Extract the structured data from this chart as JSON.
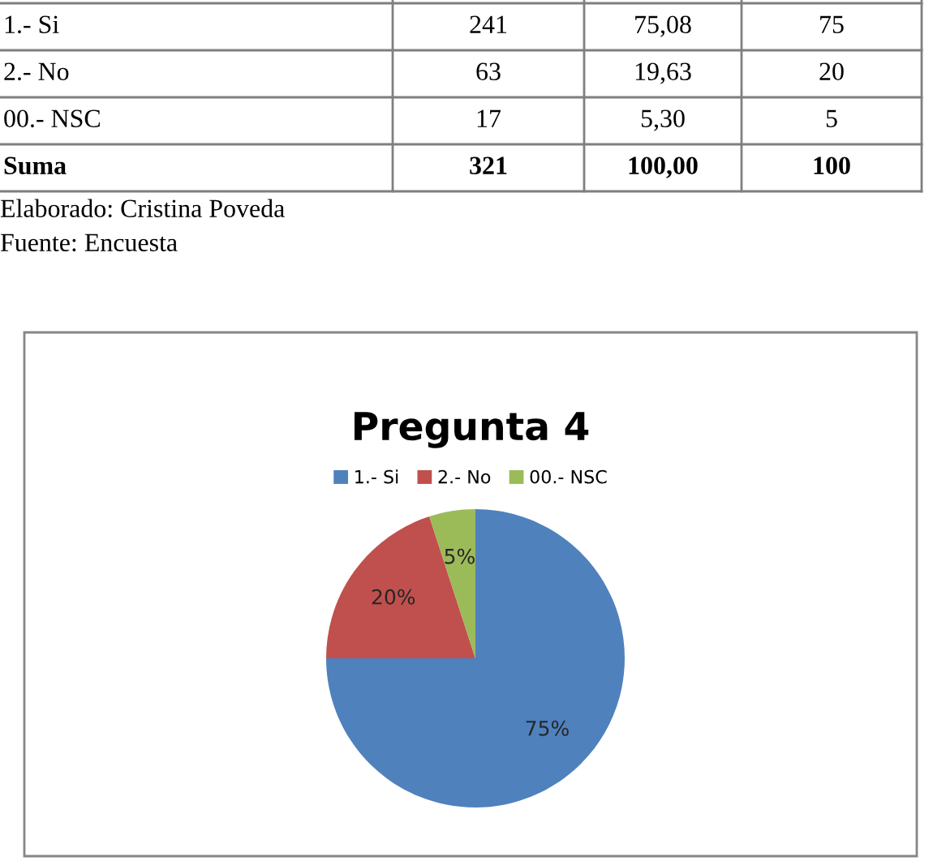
{
  "chart_data": {
    "type": "pie",
    "title": "Pregunta 4",
    "categories": [
      "1.- Si",
      "2.- No",
      "00.- NSC"
    ],
    "values": [
      75,
      20,
      5
    ],
    "colors": [
      "#4f81bd",
      "#c0504d",
      "#9bbb59"
    ],
    "value_labels": [
      "75%",
      "20%",
      "5%"
    ],
    "legend": "top",
    "annotations": [
      "1.- Si",
      "241",
      "75,08",
      "75",
      "2.- No",
      "63",
      "19,63",
      "20",
      "00.- NSC",
      "17",
      "5,30",
      "5",
      "Suma",
      "321",
      "100,00",
      "100",
      "Elaborado: Cristina Poveda",
      "Fuente: Encuesta"
    ]
  }
}
